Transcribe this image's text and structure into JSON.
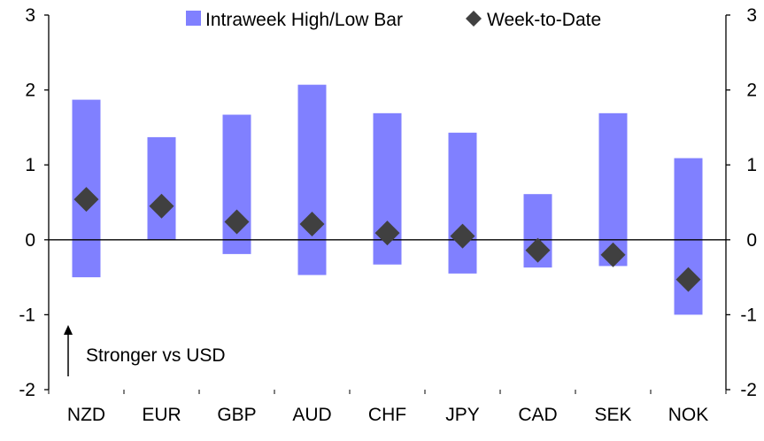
{
  "chart_data": {
    "type": "bar",
    "categories": [
      "NZD",
      "EUR",
      "GBP",
      "AUD",
      "CHF",
      "JPY",
      "CAD",
      "SEK",
      "NOK"
    ],
    "series": [
      {
        "name": "Intraweek High/Low Bar",
        "kind": "range-bar",
        "color": "#8080ff",
        "high": [
          1.87,
          1.37,
          1.67,
          2.07,
          1.69,
          1.43,
          0.61,
          1.69,
          1.09
        ],
        "low": [
          -0.5,
          0.0,
          -0.19,
          -0.47,
          -0.33,
          -0.45,
          -0.37,
          -0.35,
          -1.0
        ]
      },
      {
        "name": "Week-to-Date",
        "kind": "diamond",
        "color": "#404040",
        "values": [
          0.54,
          0.45,
          0.24,
          0.21,
          0.09,
          0.05,
          -0.14,
          -0.2,
          -0.53
        ]
      }
    ],
    "ylim": [
      -2,
      3
    ],
    "yticks": [
      "-2",
      "-1",
      "0",
      "1",
      "2",
      "3"
    ],
    "y2ticks": [
      "-2",
      "-1",
      "0",
      "1",
      "2",
      "3"
    ],
    "grid": false,
    "legend": "top",
    "annotation": "Stronger vs USD"
  }
}
